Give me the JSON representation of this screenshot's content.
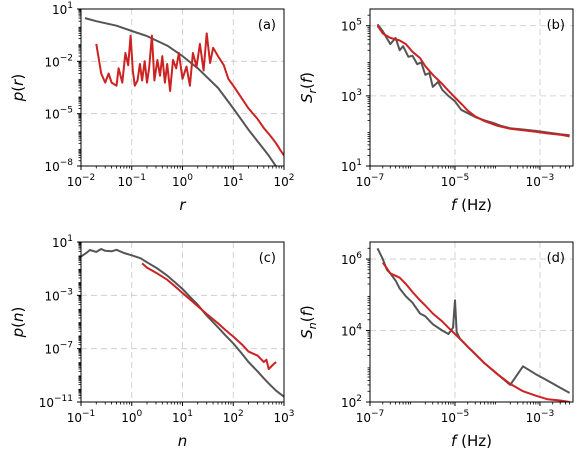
{
  "chart_data": [
    {
      "type": "line",
      "panel_label": "(a)",
      "xlabel": "r",
      "ylabel": "p(r)",
      "xscale": "log",
      "yscale": "log",
      "xlim": [
        0.01,
        100
      ],
      "ylim": [
        1e-08,
        10
      ],
      "xticks": [
        {
          "value": 0.01,
          "base": "10",
          "exp": "−2"
        },
        {
          "value": 0.1,
          "base": "10",
          "exp": "−1"
        },
        {
          "value": 1,
          "base": "10",
          "exp": "0"
        },
        {
          "value": 10,
          "base": "10",
          "exp": "1"
        },
        {
          "value": 100,
          "base": "10",
          "exp": "2"
        }
      ],
      "yticks": [
        {
          "value": 1e-08,
          "base": "10",
          "exp": "−8"
        },
        {
          "value": 1e-05,
          "base": "10",
          "exp": "−5"
        },
        {
          "value": 0.01,
          "base": "10",
          "exp": "−2"
        },
        {
          "value": 10,
          "base": "10",
          "exp": "1"
        }
      ],
      "grid": true,
      "series": [
        {
          "color": "#555555",
          "x": [
            0.012,
            0.02,
            0.05,
            0.1,
            0.2,
            0.5,
            1,
            2,
            5,
            10,
            20,
            50,
            100
          ],
          "y": [
            3.0,
            2.0,
            1.1,
            0.55,
            0.28,
            0.08,
            0.02,
            0.004,
            0.0003,
            2e-05,
            1.2e-06,
            4e-08,
            2e-09
          ]
        },
        {
          "color": "#cc2222",
          "x": [
            0.02,
            0.025,
            0.03,
            0.035,
            0.04,
            0.05,
            0.055,
            0.065,
            0.075,
            0.085,
            0.095,
            0.105,
            0.115,
            0.13,
            0.145,
            0.16,
            0.18,
            0.2,
            0.22,
            0.25,
            0.28,
            0.32,
            0.36,
            0.4,
            0.45,
            0.5,
            0.57,
            0.65,
            0.75,
            0.85,
            1.0,
            1.2,
            1.4,
            1.6,
            1.9,
            2.2,
            2.6,
            3.0,
            3.5,
            4.0,
            5.0,
            6.5,
            8.0,
            10,
            15,
            20,
            30,
            40,
            55,
            70,
            85,
            100
          ],
          "y": [
            0.1,
            0.002,
            0.0006,
            0.002,
            0.0006,
            0.0004,
            0.004,
            0.0006,
            0.03,
            0.006,
            0.3,
            0.003,
            0.0004,
            0.0008,
            0.007,
            0.0008,
            0.01,
            0.0006,
            0.004,
            0.3,
            0.0008,
            0.012,
            0.0015,
            0.02,
            0.0006,
            0.007,
            0.0002,
            0.012,
            0.004,
            0.03,
            0.001,
            0.005,
            0.0004,
            0.03,
            0.005,
            0.1,
            0.003,
            0.4,
            0.008,
            0.06,
            0.02,
            0.006,
            0.001,
            0.0004,
            7e-05,
            2e-05,
            5e-06,
            1.5e-06,
            5e-07,
            2e-07,
            8e-08,
            4e-08
          ]
        }
      ]
    },
    {
      "type": "line",
      "panel_label": "(b)",
      "xlabel": "f (Hz)",
      "ylabel": "S_r(f)",
      "xscale": "log",
      "yscale": "log",
      "xlim": [
        1e-07,
        0.006
      ],
      "ylim": [
        10,
        300000
      ],
      "xticks": [
        {
          "value": 1e-07,
          "base": "10",
          "exp": "−7"
        },
        {
          "value": 1e-05,
          "base": "10",
          "exp": "−5"
        },
        {
          "value": 0.001,
          "base": "10",
          "exp": "−3"
        }
      ],
      "yticks": [
        {
          "value": 10,
          "base": "10",
          "exp": "1"
        },
        {
          "value": 1000,
          "base": "10",
          "exp": "3"
        },
        {
          "value": 100000,
          "base": "10",
          "exp": "5"
        }
      ],
      "grid": true,
      "series": [
        {
          "color": "#555555",
          "x": [
            1.5e-07,
            2e-07,
            3e-07,
            4e-07,
            5e-07,
            6e-07,
            8e-07,
            1e-06,
            1.3e-06,
            1.6e-06,
            2e-06,
            2.5e-06,
            3e-06,
            4e-06,
            5e-06,
            7e-06,
            1e-05,
            1.4e-05,
            2e-05,
            3e-05,
            5e-05,
            8e-05,
            0.00012,
            0.0002,
            0.0004,
            0.0008,
            0.0015,
            0.003,
            0.005
          ],
          "y": [
            110000,
            70000,
            30000,
            45000,
            20000,
            26000,
            13000,
            14000,
            8000,
            9000,
            4000,
            4500,
            1800,
            2500,
            1500,
            1000,
            700,
            400,
            320,
            250,
            200,
            170,
            140,
            120,
            110,
            100,
            90,
            80,
            75
          ]
        },
        {
          "color": "#cc2222",
          "x": [
            1.5e-07,
            2e-07,
            3e-07,
            5e-07,
            7e-07,
            1e-06,
            1.5e-06,
            2e-06,
            3e-06,
            5e-06,
            7e-06,
            1e-05,
            1.5e-05,
            2e-05,
            3e-05,
            5e-05,
            0.0001,
            0.0002,
            0.0004,
            0.0008,
            0.0015,
            0.003,
            0.005
          ],
          "y": [
            100000,
            60000,
            45000,
            38000,
            30000,
            18000,
            12000,
            7000,
            4000,
            2200,
            1400,
            900,
            550,
            380,
            260,
            190,
            140,
            115,
            105,
            95,
            85,
            78,
            70
          ]
        }
      ]
    },
    {
      "type": "line",
      "panel_label": "(c)",
      "xlabel": "n",
      "ylabel": "p(n)",
      "xscale": "log",
      "yscale": "log",
      "xlim": [
        0.1,
        1000
      ],
      "ylim": [
        1e-11,
        10
      ],
      "xticks": [
        {
          "value": 0.1,
          "base": "10",
          "exp": "−1"
        },
        {
          "value": 1,
          "base": "10",
          "exp": "0"
        },
        {
          "value": 10,
          "base": "10",
          "exp": "1"
        },
        {
          "value": 100,
          "base": "10",
          "exp": "2"
        },
        {
          "value": 1000,
          "base": "10",
          "exp": "3"
        }
      ],
      "yticks": [
        {
          "value": 1e-11,
          "base": "10",
          "exp": "−11"
        },
        {
          "value": 1e-07,
          "base": "10",
          "exp": "−7"
        },
        {
          "value": 0.001,
          "base": "10",
          "exp": "−3"
        },
        {
          "value": 10,
          "base": "10",
          "exp": "1"
        }
      ],
      "grid": true,
      "series": [
        {
          "color": "#555555",
          "x": [
            0.1,
            0.13,
            0.15,
            0.2,
            0.25,
            0.3,
            0.4,
            0.5,
            0.7,
            1,
            1.5,
            2,
            3,
            5,
            7,
            10,
            15,
            20,
            30,
            50,
            70,
            100,
            150,
            200,
            300,
            400,
            500,
            700,
            1000
          ],
          "y": [
            0.8,
            1.6,
            2.5,
            1.8,
            3.0,
            2.2,
            2.0,
            2.6,
            1.5,
            1.0,
            0.6,
            0.3,
            0.12,
            0.03,
            0.01,
            0.003,
            0.0006,
            0.0002,
            3e-05,
            4e-06,
            1e-06,
            2.5e-07,
            4e-08,
            1e-08,
            2e-09,
            6e-10,
            2.5e-10,
            7e-11,
            2.5e-11
          ]
        },
        {
          "color": "#cc2222",
          "x": [
            1.6,
            2,
            3,
            5,
            7,
            10,
            15,
            20,
            30,
            50,
            70,
            100,
            150,
            200,
            300,
            400,
            450,
            500,
            600,
            700
          ],
          "y": [
            0.25,
            0.12,
            0.05,
            0.015,
            0.005,
            0.0015,
            0.0004,
            0.00015,
            4e-05,
            8e-06,
            2.5e-06,
            8e-07,
            2e-07,
            6e-08,
            3e-08,
            1e-08,
            1.5e-08,
            3e-09,
            6e-09,
            1e-08
          ]
        }
      ]
    },
    {
      "type": "line",
      "panel_label": "(d)",
      "xlabel": "f (Hz)",
      "ylabel": "S_n(f)",
      "xscale": "log",
      "yscale": "log",
      "xlim": [
        1e-07,
        0.006
      ],
      "ylim": [
        100,
        3000000
      ],
      "xticks": [
        {
          "value": 1e-07,
          "base": "10",
          "exp": "−7"
        },
        {
          "value": 1e-05,
          "base": "10",
          "exp": "−5"
        },
        {
          "value": 0.001,
          "base": "10",
          "exp": "−3"
        }
      ],
      "yticks": [
        {
          "value": 100,
          "base": "10",
          "exp": "2"
        },
        {
          "value": 10000,
          "base": "10",
          "exp": "4"
        },
        {
          "value": 1000000,
          "base": "10",
          "exp": "6"
        }
      ],
      "grid": true,
      "series": [
        {
          "color": "#555555",
          "x": [
            1.5e-07,
            2e-07,
            2.5e-07,
            3e-07,
            4e-07,
            5e-07,
            7e-07,
            1e-06,
            1.5e-06,
            2e-06,
            3e-06,
            5e-06,
            7e-06,
            9e-06,
            1e-05,
            1.1e-05,
            1.3e-05,
            2e-05,
            3e-05,
            5e-05,
            0.0001,
            0.0002,
            0.0004,
            0.0008,
            0.0015,
            0.003,
            0.005
          ],
          "y": [
            2000000,
            1000000,
            500000,
            400000,
            250000,
            150000,
            90000,
            60000,
            30000,
            25000,
            15000,
            10000,
            8000,
            12000,
            70000,
            9000,
            6000,
            3500,
            2200,
            1200,
            600,
            300,
            1000,
            600,
            400,
            250,
            180
          ]
        },
        {
          "color": "#cc2222",
          "x": [
            2e-07,
            3e-07,
            5e-07,
            7e-07,
            1e-06,
            1.5e-06,
            2e-06,
            3e-06,
            5e-06,
            7e-06,
            1e-05,
            1.5e-05,
            2e-05,
            3e-05,
            5e-05,
            0.0001,
            0.0002,
            0.0004,
            0.0008,
            0.0015,
            0.003,
            0.005
          ],
          "y": [
            800000,
            400000,
            300000,
            200000,
            120000,
            70000,
            50000,
            30000,
            18000,
            12000,
            8000,
            5000,
            3500,
            2200,
            1200,
            600,
            320,
            200,
            150,
            120,
            110,
            100
          ]
        }
      ]
    }
  ]
}
